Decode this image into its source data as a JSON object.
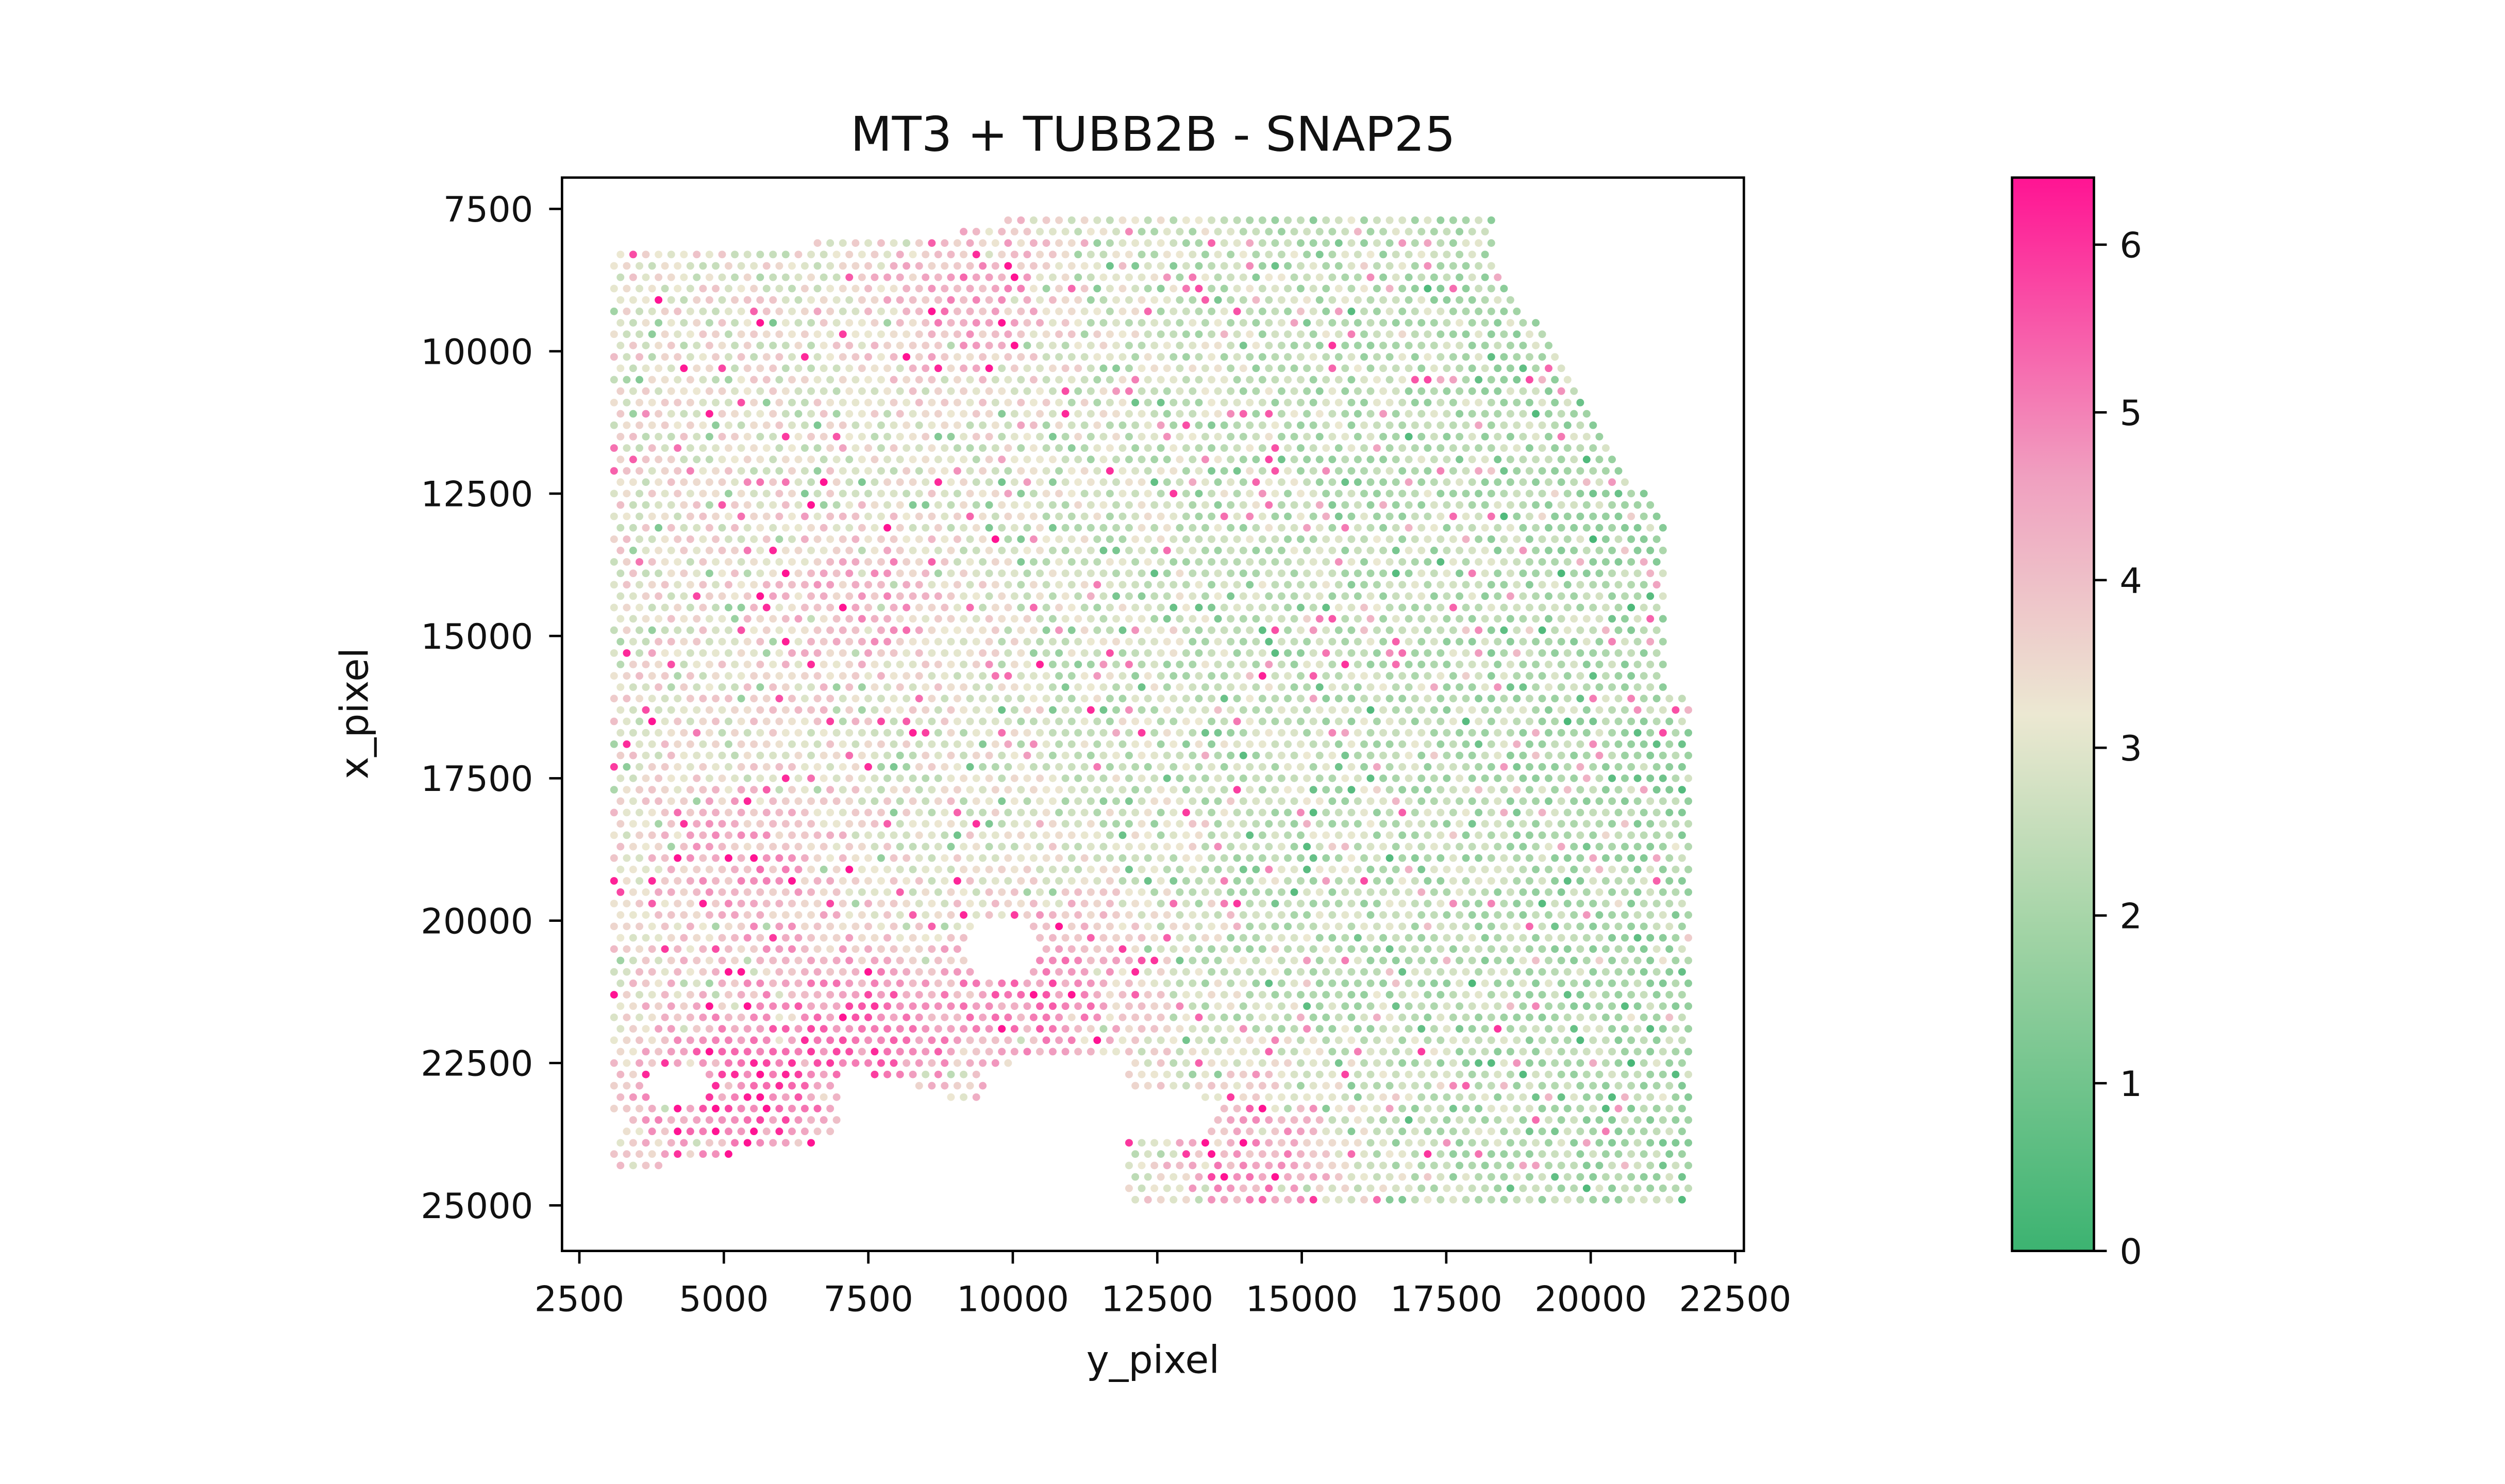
{
  "chart_data": {
    "type": "scatter",
    "title": "MT3 + TUBB2B - SNAP25",
    "xlabel": "y_pixel",
    "ylabel": "x_pixel",
    "xlim": [
      2200,
      22650
    ],
    "ylim": [
      25800,
      6950
    ],
    "y_inverted": true,
    "xticks": [
      2500,
      5000,
      7500,
      10000,
      12500,
      15000,
      17500,
      20000,
      22500
    ],
    "yticks": [
      7500,
      10000,
      12500,
      15000,
      17500,
      20000,
      22500,
      25000
    ],
    "grid": false,
    "colorbar": {
      "range": [
        0,
        6.4
      ],
      "ticks": [
        0,
        1,
        2,
        3,
        4,
        5,
        6
      ],
      "colors": [
        "#3cb371",
        "#a3d4a6",
        "#ece8d2",
        "#f0a0c0",
        "#ff1493"
      ]
    },
    "point_grid": {
      "x_range": [
        3100,
        21700
      ],
      "y_range": [
        7700,
        24950
      ],
      "note": "hexagonal Visium spot array; per-spot values shown by color"
    },
    "hot_regions": [
      {
        "x": 5200,
        "y": 23000,
        "value": 5.5
      },
      {
        "x": 7600,
        "y": 22000,
        "value": 5.5
      },
      {
        "x": 9200,
        "y": 9000,
        "value": 5.0
      },
      {
        "x": 10600,
        "y": 21200,
        "value": 5.5
      },
      {
        "x": 14200,
        "y": 24400,
        "value": 5.5
      },
      {
        "x": 7400,
        "y": 14500,
        "value": 4.5
      },
      {
        "x": 5500,
        "y": 19000,
        "value": 4.5
      }
    ]
  }
}
